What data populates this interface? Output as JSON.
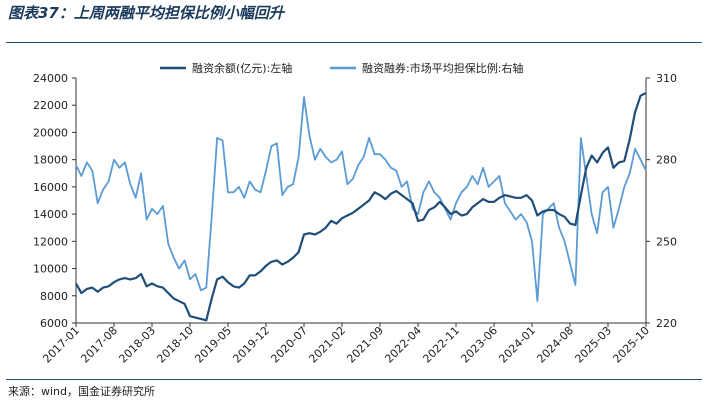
{
  "title": "图表37：上周两融平均担保比例小幅回升",
  "source": "来源：wind，国金证券研究所",
  "chart_data": {
    "type": "line",
    "x_ticks": [
      "2017-01",
      "2017-08",
      "2018-03",
      "2018-10",
      "2019-05",
      "2019-12",
      "2020-07",
      "2021-02",
      "2021-09",
      "2022-04",
      "2022-11",
      "2023-06",
      "2024-01",
      "2024-08",
      "2025-03",
      "2025-10"
    ],
    "y_left": {
      "min": 6000,
      "max": 24000,
      "ticks": [
        "24000",
        "22000",
        "20000",
        "18000",
        "16000",
        "14000",
        "12000",
        "10000",
        "8000",
        "6000"
      ]
    },
    "y_right": {
      "min": 220,
      "max": 310,
      "ticks": [
        "310",
        "280",
        "250",
        "220"
      ]
    },
    "grid": false,
    "legend_position": "top",
    "series": [
      {
        "name": "融资余额(亿元):左轴",
        "axis": "left",
        "color": "#1f4e79",
        "points": [
          [
            "2017-01",
            8900
          ],
          [
            "2017-02",
            8200
          ],
          [
            "2017-03",
            8500
          ],
          [
            "2017-04",
            8600
          ],
          [
            "2017-05",
            8300
          ],
          [
            "2017-06",
            8600
          ],
          [
            "2017-07",
            8700
          ],
          [
            "2017-08",
            9000
          ],
          [
            "2017-09",
            9200
          ],
          [
            "2017-10",
            9300
          ],
          [
            "2017-11",
            9200
          ],
          [
            "2017-12",
            9300
          ],
          [
            "2018-01",
            9600
          ],
          [
            "2018-02",
            8700
          ],
          [
            "2018-03",
            8900
          ],
          [
            "2018-04",
            8700
          ],
          [
            "2018-05",
            8600
          ],
          [
            "2018-06",
            8200
          ],
          [
            "2018-07",
            7800
          ],
          [
            "2018-08",
            7600
          ],
          [
            "2018-09",
            7400
          ],
          [
            "2018-10",
            6500
          ],
          [
            "2018-11",
            6400
          ],
          [
            "2018-12",
            6300
          ],
          [
            "2019-01",
            6200
          ],
          [
            "2019-02",
            7800
          ],
          [
            "2019-03",
            9200
          ],
          [
            "2019-04",
            9400
          ],
          [
            "2019-05",
            9000
          ],
          [
            "2019-06",
            8700
          ],
          [
            "2019-07",
            8600
          ],
          [
            "2019-08",
            8900
          ],
          [
            "2019-09",
            9500
          ],
          [
            "2019-10",
            9500
          ],
          [
            "2019-11",
            9800
          ],
          [
            "2019-12",
            10200
          ],
          [
            "2020-01",
            10500
          ],
          [
            "2020-02",
            10600
          ],
          [
            "2020-03",
            10300
          ],
          [
            "2020-04",
            10500
          ],
          [
            "2020-05",
            10800
          ],
          [
            "2020-06",
            11200
          ],
          [
            "2020-07",
            12500
          ],
          [
            "2020-08",
            12600
          ],
          [
            "2020-09",
            12500
          ],
          [
            "2020-10",
            12700
          ],
          [
            "2020-11",
            13000
          ],
          [
            "2020-12",
            13500
          ],
          [
            "2021-01",
            13300
          ],
          [
            "2021-02",
            13700
          ],
          [
            "2021-03",
            13900
          ],
          [
            "2021-04",
            14100
          ],
          [
            "2021-05",
            14400
          ],
          [
            "2021-06",
            14700
          ],
          [
            "2021-07",
            15000
          ],
          [
            "2021-08",
            15600
          ],
          [
            "2021-09",
            15400
          ],
          [
            "2021-10",
            15100
          ],
          [
            "2021-11",
            15500
          ],
          [
            "2021-12",
            15700
          ],
          [
            "2022-01",
            15400
          ],
          [
            "2022-02",
            15100
          ],
          [
            "2022-03",
            14800
          ],
          [
            "2022-04",
            13500
          ],
          [
            "2022-05",
            13600
          ],
          [
            "2022-06",
            14300
          ],
          [
            "2022-07",
            14500
          ],
          [
            "2022-08",
            14900
          ],
          [
            "2022-09",
            14500
          ],
          [
            "2022-10",
            14000
          ],
          [
            "2022-11",
            14200
          ],
          [
            "2022-12",
            13900
          ],
          [
            "2023-01",
            14000
          ],
          [
            "2023-02",
            14500
          ],
          [
            "2023-03",
            14800
          ],
          [
            "2023-04",
            15100
          ],
          [
            "2023-05",
            14900
          ],
          [
            "2023-06",
            14900
          ],
          [
            "2023-07",
            15200
          ],
          [
            "2023-08",
            15400
          ],
          [
            "2023-09",
            15300
          ],
          [
            "2023-10",
            15200
          ],
          [
            "2023-11",
            15200
          ],
          [
            "2023-12",
            15400
          ],
          [
            "2024-01",
            15000
          ],
          [
            "2024-02",
            13900
          ],
          [
            "2024-03",
            14200
          ],
          [
            "2024-04",
            14300
          ],
          [
            "2024-05",
            14300
          ],
          [
            "2024-06",
            14000
          ],
          [
            "2024-07",
            13800
          ],
          [
            "2024-08",
            13300
          ],
          [
            "2024-09",
            13200
          ],
          [
            "2024-10",
            15400
          ],
          [
            "2024-11",
            17400
          ],
          [
            "2024-12",
            18300
          ],
          [
            "2025-01",
            17800
          ],
          [
            "2025-02",
            18500
          ],
          [
            "2025-03",
            18900
          ],
          [
            "2025-04",
            17400
          ],
          [
            "2025-05",
            17800
          ],
          [
            "2025-06",
            17900
          ],
          [
            "2025-07",
            19500
          ],
          [
            "2025-08",
            21500
          ],
          [
            "2025-09",
            22700
          ],
          [
            "2025-10",
            22900
          ]
        ]
      },
      {
        "name": "融资融券:市场平均担保比例:右轴",
        "axis": "right",
        "color": "#5b9bd5",
        "points": [
          [
            "2017-01",
            278
          ],
          [
            "2017-02",
            274
          ],
          [
            "2017-03",
            279
          ],
          [
            "2017-04",
            276
          ],
          [
            "2017-05",
            264
          ],
          [
            "2017-06",
            269
          ],
          [
            "2017-07",
            272
          ],
          [
            "2017-08",
            280
          ],
          [
            "2017-09",
            277
          ],
          [
            "2017-10",
            279
          ],
          [
            "2017-11",
            271
          ],
          [
            "2017-12",
            266
          ],
          [
            "2018-01",
            275
          ],
          [
            "2018-02",
            258
          ],
          [
            "2018-03",
            262
          ],
          [
            "2018-04",
            260
          ],
          [
            "2018-05",
            263
          ],
          [
            "2018-06",
            249
          ],
          [
            "2018-07",
            244
          ],
          [
            "2018-08",
            240
          ],
          [
            "2018-09",
            243
          ],
          [
            "2018-10",
            236
          ],
          [
            "2018-11",
            238
          ],
          [
            "2018-12",
            232
          ],
          [
            "2019-01",
            233
          ],
          [
            "2019-02",
            259
          ],
          [
            "2019-03",
            288
          ],
          [
            "2019-04",
            287
          ],
          [
            "2019-05",
            268
          ],
          [
            "2019-06",
            268
          ],
          [
            "2019-07",
            270
          ],
          [
            "2019-08",
            266
          ],
          [
            "2019-09",
            272
          ],
          [
            "2019-10",
            269
          ],
          [
            "2019-11",
            268
          ],
          [
            "2019-12",
            276
          ],
          [
            "2020-01",
            285
          ],
          [
            "2020-02",
            286
          ],
          [
            "2020-03",
            267
          ],
          [
            "2020-04",
            270
          ],
          [
            "2020-05",
            271
          ],
          [
            "2020-06",
            281
          ],
          [
            "2020-07",
            303
          ],
          [
            "2020-08",
            289
          ],
          [
            "2020-09",
            280
          ],
          [
            "2020-10",
            284
          ],
          [
            "2020-11",
            281
          ],
          [
            "2020-12",
            279
          ],
          [
            "2021-01",
            280
          ],
          [
            "2021-02",
            283
          ],
          [
            "2021-03",
            271
          ],
          [
            "2021-04",
            273
          ],
          [
            "2021-05",
            278
          ],
          [
            "2021-06",
            281
          ],
          [
            "2021-07",
            288
          ],
          [
            "2021-08",
            282
          ],
          [
            "2021-09",
            282
          ],
          [
            "2021-10",
            280
          ],
          [
            "2021-11",
            277
          ],
          [
            "2021-12",
            276
          ],
          [
            "2022-01",
            270
          ],
          [
            "2022-02",
            272
          ],
          [
            "2022-03",
            262
          ],
          [
            "2022-04",
            260
          ],
          [
            "2022-05",
            268
          ],
          [
            "2022-06",
            272
          ],
          [
            "2022-07",
            268
          ],
          [
            "2022-08",
            266
          ],
          [
            "2022-09",
            262
          ],
          [
            "2022-10",
            258
          ],
          [
            "2022-11",
            264
          ],
          [
            "2022-12",
            268
          ],
          [
            "2023-01",
            270
          ],
          [
            "2023-02",
            274
          ],
          [
            "2023-03",
            271
          ],
          [
            "2023-04",
            277
          ],
          [
            "2023-05",
            270
          ],
          [
            "2023-06",
            272
          ],
          [
            "2023-07",
            274
          ],
          [
            "2023-08",
            264
          ],
          [
            "2023-09",
            261
          ],
          [
            "2023-10",
            258
          ],
          [
            "2023-11",
            260
          ],
          [
            "2023-12",
            257
          ],
          [
            "2024-01",
            250
          ],
          [
            "2024-02",
            228
          ],
          [
            "2024-03",
            260
          ],
          [
            "2024-04",
            262
          ],
          [
            "2024-05",
            264
          ],
          [
            "2024-06",
            255
          ],
          [
            "2024-07",
            250
          ],
          [
            "2024-08",
            242
          ],
          [
            "2024-09",
            234
          ],
          [
            "2024-10",
            288
          ],
          [
            "2024-11",
            274
          ],
          [
            "2024-12",
            260
          ],
          [
            "2025-01",
            253
          ],
          [
            "2025-02",
            268
          ],
          [
            "2025-03",
            270
          ],
          [
            "2025-04",
            255
          ],
          [
            "2025-05",
            262
          ],
          [
            "2025-06",
            270
          ],
          [
            "2025-07",
            275
          ],
          [
            "2025-08",
            284
          ],
          [
            "2025-09",
            280
          ],
          [
            "2025-10",
            276
          ]
        ]
      }
    ]
  }
}
